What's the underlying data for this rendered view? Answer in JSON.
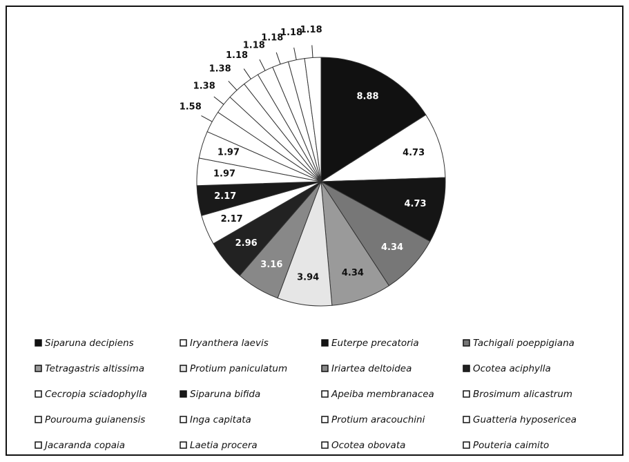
{
  "chart_data": {
    "type": "pie",
    "categories": [
      "Siparuna decipiens",
      "Iryanthera laevis",
      "Euterpe precatoria",
      "Tachigali poeppigiana",
      "Tetragastris altissima",
      "Protium paniculatum",
      "Iriartea deltoidea",
      "Ocotea aciphylla",
      "Cecropia sciadophylla",
      "Siparuna bifida",
      "Apeiba membranacea",
      "Brosimum alicastrum",
      "Pourouma guianensis",
      "Inga capitata",
      "Protium aracouchini",
      "Guatteria hyposericea",
      "Jacaranda copaia",
      "Laetia procera",
      "Ocotea obovata",
      "Pouteria caimito"
    ],
    "values": [
      8.88,
      4.73,
      4.73,
      4.34,
      4.34,
      3.94,
      3.16,
      2.96,
      2.17,
      2.17,
      1.97,
      1.97,
      1.58,
      1.38,
      1.38,
      1.18,
      1.18,
      1.18,
      1.18,
      1.18
    ],
    "colors": [
      "#111111",
      "#ffffff",
      "#151515",
      "#777777",
      "#9a9a9a",
      "#e6e6e6",
      "#888888",
      "#222222",
      "#ffffff",
      "#1a1a1a",
      "#ffffff",
      "#ffffff",
      "#ffffff",
      "#ffffff",
      "#ffffff",
      "#ffffff",
      "#ffffff",
      "#ffffff",
      "#ffffff",
      "#ffffff"
    ],
    "legend": "bottom"
  }
}
